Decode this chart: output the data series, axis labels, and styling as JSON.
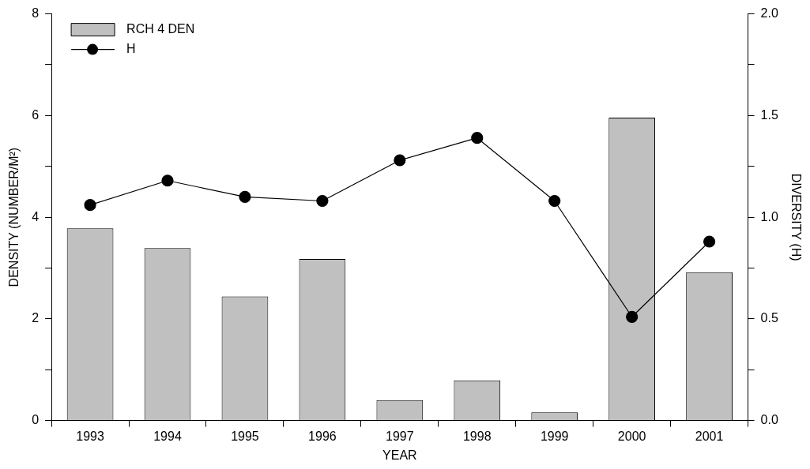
{
  "chart_data": {
    "type": "bar",
    "xlabel": "YEAR",
    "ylabel": "DENSITY (NUMBER/M²)",
    "y2label": "DIVERSITY (H)",
    "categories": [
      "1993",
      "1994",
      "1995",
      "1996",
      "1997",
      "1998",
      "1999",
      "2000",
      "2001"
    ],
    "series": [
      {
        "name": "RCH 4 DEN",
        "color": "#c0c0c0",
        "values": [
          3.78,
          3.39,
          2.44,
          3.18,
          0.4,
          0.79,
          0.16,
          5.96,
          2.92
        ]
      },
      {
        "name": "H",
        "type": "line",
        "axis": "y2",
        "color": "#000000",
        "values": [
          1.06,
          1.18,
          1.1,
          1.08,
          1.28,
          1.39,
          1.08,
          0.51,
          0.88
        ]
      }
    ],
    "ylim": [
      0,
      8
    ],
    "yticks": [
      0,
      {
        "value": 1,
        "label": null
      },
      2,
      {
        "value": 3,
        "label": null
      },
      4,
      {
        "value": 5,
        "label": null
      },
      6,
      {
        "value": 7,
        "label": null
      },
      8
    ],
    "y2lim": [
      0,
      2
    ],
    "y2ticks": [
      {
        "value": 0,
        "label": "0.0"
      },
      {
        "value": 0.25,
        "label": null
      },
      {
        "value": 0.5,
        "label": "0.5"
      },
      {
        "value": 0.75,
        "label": null
      },
      {
        "value": 1,
        "label": "1.0"
      },
      {
        "value": 1.25,
        "label": null
      },
      {
        "value": 1.5,
        "label": "1.5"
      },
      {
        "value": 1.75,
        "label": null
      },
      {
        "value": 2,
        "label": "2.0"
      }
    ],
    "legend": "top left",
    "marker": "circle",
    "line_style": "solid",
    "grid": false
  }
}
